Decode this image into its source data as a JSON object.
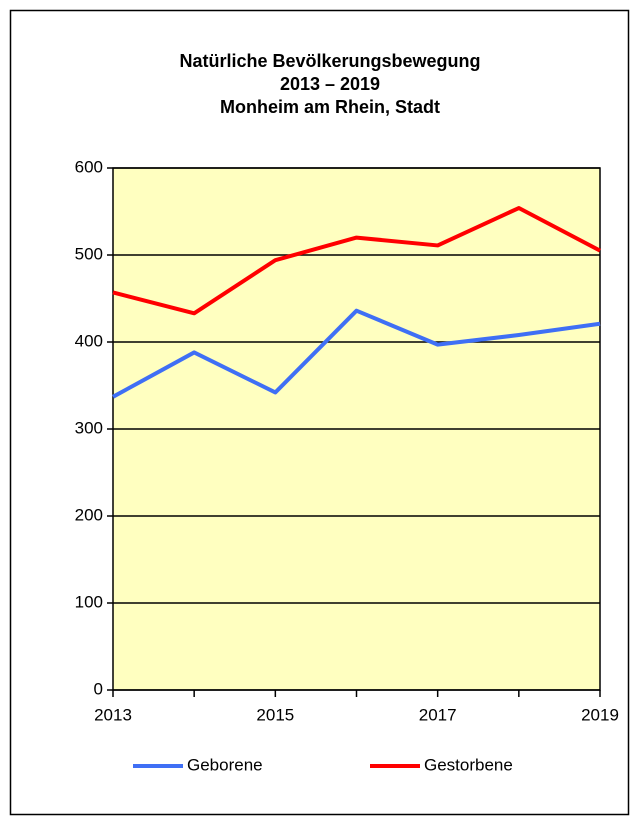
{
  "chart_data": {
    "type": "line",
    "title": [
      "Natürliche Bevölkerungsbewegung",
      "2013 – 2019",
      "Monheim am Rhein, Stadt"
    ],
    "x": [
      2013,
      2014,
      2015,
      2016,
      2017,
      2018,
      2019
    ],
    "series": [
      {
        "name": "Geborene",
        "color": "#3f6ff5",
        "values": [
          337,
          388,
          342,
          436,
          397,
          408,
          421
        ]
      },
      {
        "name": "Gestorbene",
        "color": "#ff0000",
        "values": [
          457,
          433,
          494,
          520,
          511,
          554,
          505
        ]
      }
    ],
    "xlim": [
      2013,
      2019
    ],
    "xticks": [
      2013,
      2015,
      2017,
      2019
    ],
    "ylim": [
      0,
      600
    ],
    "yticks": [
      0,
      100,
      200,
      300,
      400,
      500,
      600
    ],
    "grid": true,
    "legend": "bottom",
    "background": "#ffffc0"
  }
}
